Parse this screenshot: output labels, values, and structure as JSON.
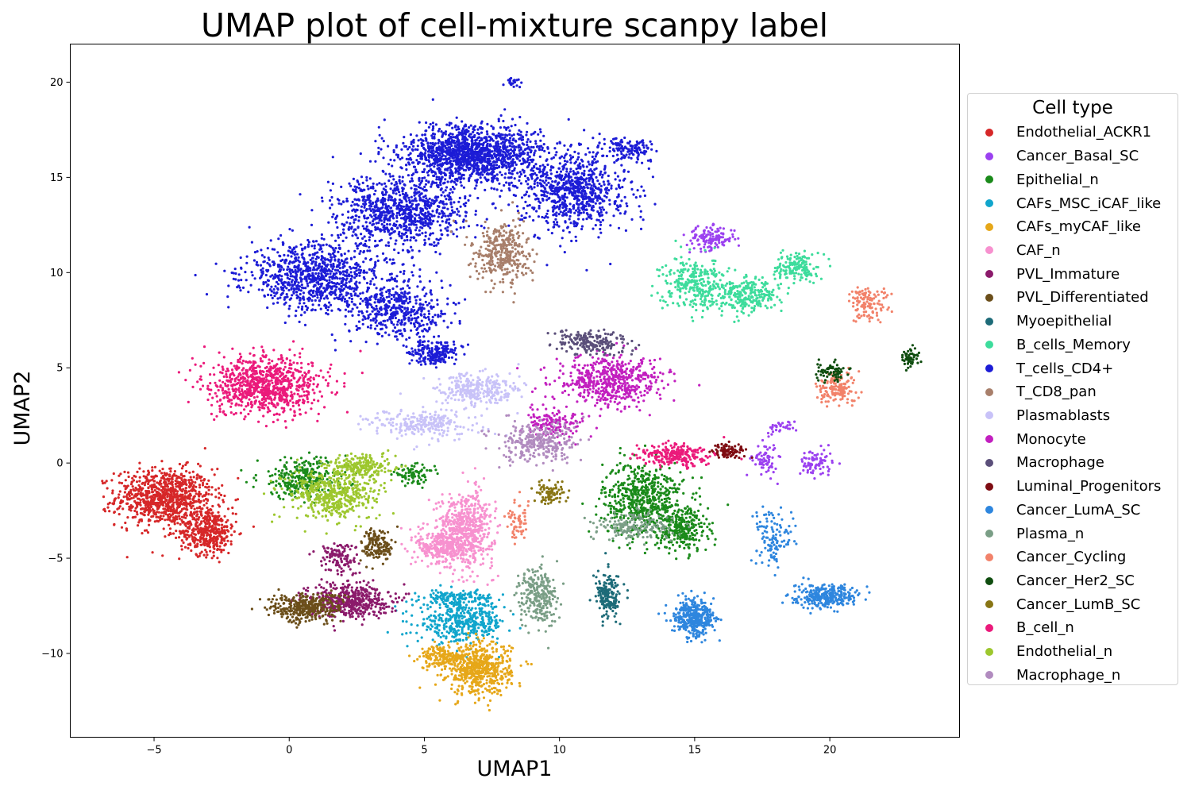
{
  "chart_data": {
    "type": "scatter",
    "title": "UMAP plot of cell-mixture scanpy label",
    "xlabel": "UMAP1",
    "ylabel": "UMAP2",
    "xlim": [
      -8.1,
      24.8
    ],
    "ylim": [
      -14.4,
      22
    ],
    "xticks": [
      -5,
      0,
      5,
      10,
      15,
      20
    ],
    "yticks": [
      -10,
      -5,
      0,
      5,
      10,
      15,
      20
    ],
    "grid": false,
    "legend": {
      "title": "Cell type",
      "placement": "right, outside plot"
    },
    "series": [
      {
        "name": "Endothelial_ACKR1",
        "color": "#d62728",
        "clusters": [
          {
            "x": -4.6,
            "y": -1.8,
            "sx": 1.2,
            "sy": 1.0,
            "n": 900
          },
          {
            "x": -3.0,
            "y": -3.6,
            "sx": 0.7,
            "sy": 0.8,
            "n": 400
          }
        ]
      },
      {
        "name": "Cancer_Basal_SC",
        "color": "#9b41f0",
        "clusters": [
          {
            "x": 15.6,
            "y": 11.8,
            "sx": 0.6,
            "sy": 0.4,
            "n": 140
          },
          {
            "x": 17.6,
            "y": 0.2,
            "sx": 0.3,
            "sy": 0.6,
            "n": 70
          },
          {
            "x": 19.5,
            "y": 0.0,
            "sx": 0.4,
            "sy": 0.5,
            "n": 80
          },
          {
            "x": 18.2,
            "y": 1.9,
            "sx": 0.4,
            "sy": 0.2,
            "n": 30
          }
        ]
      },
      {
        "name": "Epithelial_n",
        "color": "#1a8a1a",
        "clusters": [
          {
            "x": 13.1,
            "y": -1.9,
            "sx": 1.0,
            "sy": 1.3,
            "n": 600
          },
          {
            "x": 14.6,
            "y": -3.5,
            "sx": 0.6,
            "sy": 0.8,
            "n": 250
          },
          {
            "x": 0.5,
            "y": -0.8,
            "sx": 1.1,
            "sy": 0.7,
            "n": 280
          },
          {
            "x": 4.6,
            "y": -0.6,
            "sx": 0.5,
            "sy": 0.3,
            "n": 80
          }
        ]
      },
      {
        "name": "CAFs_MSC_iCAF_like",
        "color": "#10a5cc",
        "clusters": [
          {
            "x": 6.4,
            "y": -8.4,
            "sx": 1.1,
            "sy": 0.7,
            "n": 400
          },
          {
            "x": 6.2,
            "y": -7.1,
            "sx": 0.9,
            "sy": 0.3,
            "n": 150
          }
        ]
      },
      {
        "name": "CAFs_myCAF_like",
        "color": "#e6a719",
        "clusters": [
          {
            "x": 7.0,
            "y": -10.8,
            "sx": 0.8,
            "sy": 0.9,
            "n": 600
          },
          {
            "x": 5.6,
            "y": -10.2,
            "sx": 0.5,
            "sy": 0.4,
            "n": 150
          }
        ]
      },
      {
        "name": "CAF_n",
        "color": "#f791cf",
        "clusters": [
          {
            "x": 6.5,
            "y": -3.5,
            "sx": 0.7,
            "sy": 1.3,
            "n": 600
          },
          {
            "x": 5.6,
            "y": -4.4,
            "sx": 0.6,
            "sy": 0.6,
            "n": 250
          }
        ]
      },
      {
        "name": "PVL_Immature",
        "color": "#8b1a6b",
        "clusters": [
          {
            "x": 2.2,
            "y": -7.2,
            "sx": 1.0,
            "sy": 0.6,
            "n": 450
          },
          {
            "x": 1.8,
            "y": -5.0,
            "sx": 0.5,
            "sy": 0.6,
            "n": 120
          }
        ]
      },
      {
        "name": "PVL_Differentiated",
        "color": "#6b4e1a",
        "clusters": [
          {
            "x": 0.6,
            "y": -7.6,
            "sx": 0.9,
            "sy": 0.5,
            "n": 350
          },
          {
            "x": 3.3,
            "y": -4.3,
            "sx": 0.4,
            "sy": 0.6,
            "n": 150
          }
        ]
      },
      {
        "name": "Myoepithelial",
        "color": "#1d6b78",
        "clusters": [
          {
            "x": 11.8,
            "y": -7.0,
            "sx": 0.3,
            "sy": 0.8,
            "n": 170
          }
        ]
      },
      {
        "name": "B_cells_Memory",
        "color": "#3ddc9c",
        "clusters": [
          {
            "x": 15.0,
            "y": 9.4,
            "sx": 0.8,
            "sy": 0.9,
            "n": 300
          },
          {
            "x": 17.0,
            "y": 8.8,
            "sx": 0.8,
            "sy": 0.6,
            "n": 250
          },
          {
            "x": 18.8,
            "y": 10.3,
            "sx": 0.5,
            "sy": 0.5,
            "n": 150
          }
        ]
      },
      {
        "name": "T_cells_CD4+",
        "color": "#1c1cd6",
        "clusters": [
          {
            "x": 6.8,
            "y": 16.2,
            "sx": 1.7,
            "sy": 1.0,
            "n": 1400
          },
          {
            "x": 4.2,
            "y": 13.2,
            "sx": 1.6,
            "sy": 1.2,
            "n": 900
          },
          {
            "x": 10.6,
            "y": 14.3,
            "sx": 1.3,
            "sy": 1.4,
            "n": 800
          },
          {
            "x": 1.0,
            "y": 9.8,
            "sx": 1.7,
            "sy": 1.2,
            "n": 900
          },
          {
            "x": 4.0,
            "y": 8.0,
            "sx": 1.2,
            "sy": 1.0,
            "n": 450
          },
          {
            "x": 5.4,
            "y": 5.8,
            "sx": 0.6,
            "sy": 0.4,
            "n": 200
          },
          {
            "x": 12.6,
            "y": 16.5,
            "sx": 0.6,
            "sy": 0.4,
            "n": 120
          },
          {
            "x": 8.3,
            "y": 20.0,
            "sx": 0.2,
            "sy": 0.2,
            "n": 20
          }
        ]
      },
      {
        "name": "T_CD8_pan",
        "color": "#a87f6b",
        "clusters": [
          {
            "x": 7.9,
            "y": 11.0,
            "sx": 0.7,
            "sy": 1.1,
            "n": 350
          }
        ]
      },
      {
        "name": "Plasmablasts",
        "color": "#c8c2f8",
        "clusters": [
          {
            "x": 6.9,
            "y": 3.8,
            "sx": 1.0,
            "sy": 0.6,
            "n": 300
          },
          {
            "x": 5.0,
            "y": 2.0,
            "sx": 1.3,
            "sy": 0.5,
            "n": 250
          }
        ]
      },
      {
        "name": "Monocyte",
        "color": "#c21fbf",
        "clusters": [
          {
            "x": 11.9,
            "y": 4.3,
            "sx": 1.3,
            "sy": 0.9,
            "n": 550
          },
          {
            "x": 9.8,
            "y": 2.1,
            "sx": 0.8,
            "sy": 0.5,
            "n": 150
          }
        ]
      },
      {
        "name": "Macrophage",
        "color": "#5b4f7a",
        "clusters": [
          {
            "x": 11.2,
            "y": 6.3,
            "sx": 0.9,
            "sy": 0.4,
            "n": 200
          }
        ]
      },
      {
        "name": "Luminal_Progenitors",
        "color": "#7e0c12",
        "clusters": [
          {
            "x": 16.3,
            "y": 0.6,
            "sx": 0.4,
            "sy": 0.3,
            "n": 90
          }
        ]
      },
      {
        "name": "Cancer_LumA_SC",
        "color": "#2e86de",
        "clusters": [
          {
            "x": 15.0,
            "y": -8.1,
            "sx": 0.5,
            "sy": 0.6,
            "n": 400
          },
          {
            "x": 19.8,
            "y": -7.0,
            "sx": 0.8,
            "sy": 0.4,
            "n": 300
          },
          {
            "x": 17.9,
            "y": -4.0,
            "sx": 0.4,
            "sy": 1.0,
            "n": 120
          }
        ]
      },
      {
        "name": "Plasma_n",
        "color": "#7a9e86",
        "clusters": [
          {
            "x": 9.2,
            "y": -7.0,
            "sx": 0.5,
            "sy": 1.0,
            "n": 250
          },
          {
            "x": 12.8,
            "y": -3.3,
            "sx": 1.0,
            "sy": 0.5,
            "n": 180
          }
        ]
      },
      {
        "name": "Cancer_Cycling",
        "color": "#f2826a",
        "clusters": [
          {
            "x": 21.4,
            "y": 8.4,
            "sx": 0.5,
            "sy": 0.6,
            "n": 120
          },
          {
            "x": 20.3,
            "y": 3.9,
            "sx": 0.5,
            "sy": 0.6,
            "n": 150
          },
          {
            "x": 8.4,
            "y": -3.1,
            "sx": 0.3,
            "sy": 0.7,
            "n": 60
          }
        ]
      },
      {
        "name": "Cancer_Her2_SC",
        "color": "#0f4d0f",
        "clusters": [
          {
            "x": 23.0,
            "y": 5.6,
            "sx": 0.2,
            "sy": 0.4,
            "n": 50
          },
          {
            "x": 20.1,
            "y": 4.8,
            "sx": 0.4,
            "sy": 0.3,
            "n": 70
          }
        ]
      },
      {
        "name": "Cancer_LumB_SC",
        "color": "#887514",
        "clusters": [
          {
            "x": 9.7,
            "y": -1.6,
            "sx": 0.4,
            "sy": 0.4,
            "n": 80
          }
        ]
      },
      {
        "name": "B_cell_n",
        "color": "#eb1a7b",
        "clusters": [
          {
            "x": -0.9,
            "y": 4.1,
            "sx": 1.4,
            "sy": 1.0,
            "n": 900
          },
          {
            "x": 14.2,
            "y": 0.4,
            "sx": 0.8,
            "sy": 0.4,
            "n": 250
          }
        ]
      },
      {
        "name": "Endothelial_n",
        "color": "#9dc72e",
        "clusters": [
          {
            "x": 1.6,
            "y": -1.6,
            "sx": 1.1,
            "sy": 0.9,
            "n": 500
          },
          {
            "x": 2.6,
            "y": -0.2,
            "sx": 0.8,
            "sy": 0.4,
            "n": 200
          }
        ]
      },
      {
        "name": "Macrophage_n",
        "color": "#b18bbf",
        "clusters": [
          {
            "x": 9.2,
            "y": 1.1,
            "sx": 0.9,
            "sy": 0.7,
            "n": 300
          }
        ]
      }
    ]
  }
}
